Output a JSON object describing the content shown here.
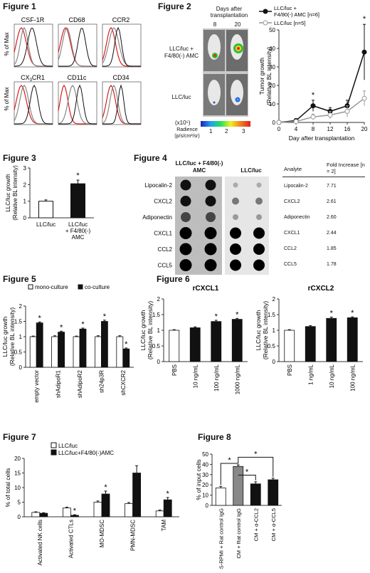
{
  "figure1": {
    "title": "Figure 1",
    "ylabel": "% of Max",
    "panels": [
      {
        "label": "CSF-1R"
      },
      {
        "label": "CD68"
      },
      {
        "label": "CCR2"
      },
      {
        "label": "CX3CR1",
        "label_main": "CX",
        "label_sub": "3",
        "label_end": "CR1"
      },
      {
        "label": "CD11c"
      },
      {
        "label": "CD34"
      }
    ],
    "colors": {
      "red": "#d42020",
      "black": "#111111",
      "gray": "#888888"
    }
  },
  "figure2": {
    "title": "Figure 2",
    "days_header": "Days after transplantation",
    "days": [
      "8",
      "20"
    ],
    "group1_label": "LLC/luc + F4/80(-) AMC",
    "group2_label": "LLC/luc",
    "scale_label": "(x10⁵)",
    "radiance_label": "Radience (p/s/cm²/sr)",
    "scale_ticks": [
      "1",
      "2",
      "3"
    ]
  },
  "figure3": {
    "title": "Figure 3"
  },
  "figure4": {
    "title": "Figure 4",
    "col1": "LLC/luc + F4/80(-) AMC",
    "col2": "LLC/luc",
    "analytes": [
      "Lipocalin-2",
      "CXCL2",
      "Adiponectin",
      "CXCL1",
      "CCL2",
      "CCL5"
    ],
    "table": {
      "h1": "Analyte",
      "h2": "Fold Increase [n = 2]",
      "rows": [
        {
          "analyte": "Lipocalin-2",
          "fold": "7.71"
        },
        {
          "analyte": "CXCL2",
          "fold": "2.61"
        },
        {
          "analyte": "Adiponectin",
          "fold": "2.60"
        },
        {
          "analyte": "CXCL1",
          "fold": "2.44"
        },
        {
          "analyte": "CCL2",
          "fold": "1.85"
        },
        {
          "analyte": "CCL5",
          "fold": "1.78"
        }
      ]
    }
  },
  "figure5": {
    "title": "Figure 5"
  },
  "figure6": {
    "title": "Figure 6"
  },
  "figure7": {
    "title": "Figure 7"
  },
  "figure8": {
    "title": "Figure 8"
  },
  "chart_data": [
    {
      "id": "fig2-growth",
      "type": "line",
      "xlabel": "Day after transplantation",
      "ylabel": "Tumor growth (Relative BL intensity)",
      "x": [
        0,
        4,
        8,
        12,
        16,
        20
      ],
      "xticks": [
        0,
        4,
        8,
        12,
        16,
        20
      ],
      "ylim": [
        0,
        50
      ],
      "yticks": [
        0,
        10,
        20,
        30,
        40,
        50
      ],
      "series": [
        {
          "name": "LLC/luc + F4/80(-) AMC [n=6]",
          "values": [
            0,
            1,
            9,
            6,
            9,
            38
          ],
          "err": [
            0,
            1,
            3,
            2,
            3,
            15
          ],
          "fill": "#111111"
        },
        {
          "name": "LLC/luc [n=5]",
          "values": [
            0,
            0.5,
            3,
            4,
            6,
            13
          ],
          "err": [
            0,
            0.5,
            1.5,
            2,
            3,
            4
          ],
          "fill": "#ffffff"
        }
      ],
      "stars": [
        "*",
        "*"
      ],
      "star_x": [
        8,
        20
      ]
    },
    {
      "id": "fig3",
      "type": "bar",
      "ylabel": "LLC/luc growth (Relative BL intensity)",
      "categories": [
        "LLC/luc",
        "LLC/luc + F4/80(-) AMC"
      ],
      "values": [
        1.0,
        2.05
      ],
      "err": [
        0.08,
        0.22
      ],
      "fills": [
        "#ffffff",
        "#111111"
      ],
      "ylim": [
        0,
        3
      ],
      "yticks": [
        0,
        1,
        2,
        3
      ],
      "stars": [
        "",
        "*"
      ]
    },
    {
      "id": "fig5",
      "type": "bar",
      "ylabel": "LLC/luc growth (Relative BL intensity)",
      "categories": [
        "empty vector",
        "shAdipoR1",
        "shAdipoR2",
        "sh24p3R",
        "shCXCR2"
      ],
      "legend": [
        "mono-culture",
        "co-culture"
      ],
      "series": [
        {
          "name": "mono-culture",
          "values": [
            1.0,
            1.0,
            1.0,
            1.0,
            1.0
          ],
          "err": [
            0.02,
            0.03,
            0.02,
            0.03,
            0.03
          ],
          "fill": "#ffffff"
        },
        {
          "name": "co-culture",
          "values": [
            1.45,
            1.15,
            1.25,
            1.5,
            0.6
          ],
          "err": [
            0.03,
            0.03,
            0.03,
            0.04,
            0.03
          ],
          "fill": "#111111"
        }
      ],
      "ylim": [
        0,
        2
      ],
      "yticks": [
        0,
        0.5,
        1,
        1.5,
        2
      ],
      "stars": [
        "*",
        "*",
        "*",
        "*",
        "*"
      ]
    },
    {
      "id": "fig6a",
      "type": "bar",
      "title": "rCXCL1",
      "ylabel": "LLC/luc growth (Relative BL intensity)",
      "categories": [
        "PBS",
        "10 ng/mL",
        "100 ng/mL",
        "1000 ng/mL"
      ],
      "values": [
        1.0,
        1.08,
        1.28,
        1.35
      ],
      "err": [
        0.02,
        0.03,
        0.04,
        0.03
      ],
      "fills": [
        "#ffffff",
        "#111111",
        "#111111",
        "#111111"
      ],
      "ylim": [
        0,
        2
      ],
      "yticks": [
        0,
        0.5,
        1,
        1.5,
        2
      ],
      "stars": [
        "",
        "",
        "*",
        "*"
      ]
    },
    {
      "id": "fig6b",
      "type": "bar",
      "title": "rCXCL2",
      "ylabel": "LLC/luc growth (Relative BL intensity)",
      "categories": [
        "PBS",
        "1 ng/mL",
        "10 ng/mL",
        "100 ng/mL"
      ],
      "values": [
        1.0,
        1.12,
        1.38,
        1.4
      ],
      "err": [
        0.02,
        0.03,
        0.04,
        0.03
      ],
      "fills": [
        "#ffffff",
        "#111111",
        "#111111",
        "#111111"
      ],
      "ylim": [
        0,
        2
      ],
      "yticks": [
        0,
        0.5,
        1,
        1.5,
        2
      ],
      "stars": [
        "",
        "",
        "*",
        "*"
      ]
    },
    {
      "id": "fig7",
      "type": "bar",
      "ylabel": "% of total cells",
      "categories": [
        "Activated NK cells",
        "Activated CTLs",
        "MO-MDSC",
        "PMN-MDSC",
        "TAM"
      ],
      "legend": [
        "LLC/luc",
        "LLC/luc+F4/80(-)AMC"
      ],
      "series": [
        {
          "name": "LLC/luc",
          "values": [
            1.5,
            3.0,
            5.0,
            4.5,
            2.0
          ],
          "err": [
            0.2,
            0.3,
            0.4,
            0.4,
            0.3
          ],
          "fill": "#ffffff"
        },
        {
          "name": "LLC/luc+F4/80(-)AMC",
          "values": [
            1.2,
            0.5,
            7.8,
            15.0,
            5.8
          ],
          "err": [
            0.2,
            0.2,
            1.0,
            2.5,
            0.8
          ],
          "fill": "#111111"
        }
      ],
      "ylim": [
        0,
        20
      ],
      "yticks": [
        0,
        5,
        10,
        15,
        20
      ],
      "stars": [
        "",
        "*",
        "*",
        "",
        "*"
      ]
    },
    {
      "id": "fig8",
      "type": "bar",
      "ylabel": "% of input cells",
      "categories": [
        "2% FBS-RPMI + Rat control IgG",
        "CM + Rat control IgG",
        "CM + α-CCL2",
        "CM + α-CCL5"
      ],
      "values": [
        17,
        38,
        21,
        25
      ],
      "err": [
        1.5,
        1.5,
        2,
        1.5
      ],
      "fills": [
        "#ffffff",
        "#888888",
        "#111111",
        "#111111"
      ],
      "ylim": [
        0,
        50
      ],
      "yticks": [
        0,
        10,
        20,
        30,
        40,
        50
      ],
      "stars": [
        "*",
        "*",
        "*"
      ]
    }
  ]
}
